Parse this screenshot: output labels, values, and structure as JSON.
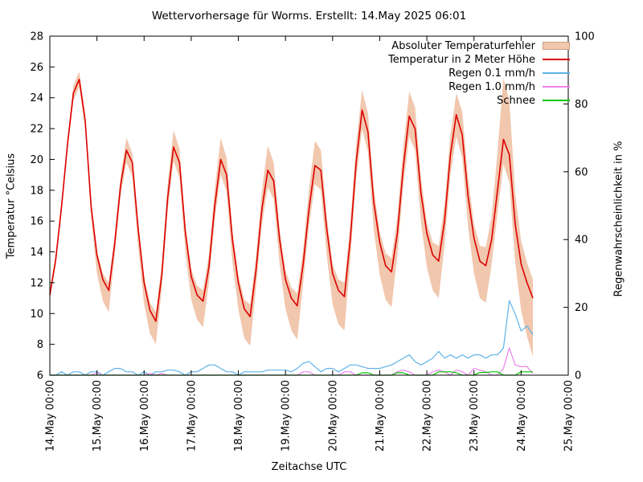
{
  "chart_data": {
    "type": "line",
    "title": "Wettervorhersage für Worms. Erstellt: 14.May 2025 06:01",
    "xlabel": "Zeitachse UTC",
    "ylabel_left": "Temperatur °Celsius",
    "ylabel_right": "Regenwahrscheinlichkeit in %",
    "legend_position": "top-right-inside",
    "grid": false,
    "x_axis": {
      "unit": "hours since 14.May 2025 00:00 UTC",
      "range_hours": [
        0,
        264
      ],
      "tick_hours": [
        0,
        24,
        48,
        72,
        96,
        120,
        144,
        168,
        192,
        216,
        240,
        264
      ],
      "tick_labels": [
        "14.May 00:00",
        "15.May 00:00",
        "16.May 00:00",
        "17.May 00:00",
        "18.May 00:00",
        "19.May 00:00",
        "20.May 00:00",
        "21.May 00:00",
        "22.May 00:00",
        "23.May 00:00",
        "24.May 00:00",
        "25.May 00:00"
      ]
    },
    "y_axis_left": {
      "min": 6,
      "max": 28,
      "ticks": [
        6,
        8,
        10,
        12,
        14,
        16,
        18,
        20,
        22,
        24,
        26,
        28
      ]
    },
    "y_axis_right": {
      "min": 0,
      "max": 100,
      "ticks": [
        0,
        20,
        40,
        60,
        80,
        100
      ]
    },
    "x_hours": [
      0,
      3,
      6,
      9,
      12,
      15,
      18,
      21,
      24,
      27,
      30,
      33,
      36,
      39,
      42,
      45,
      48,
      51,
      54,
      57,
      60,
      63,
      66,
      69,
      72,
      75,
      78,
      81,
      84,
      87,
      90,
      93,
      96,
      99,
      102,
      105,
      108,
      111,
      114,
      117,
      120,
      123,
      126,
      129,
      132,
      135,
      138,
      141,
      144,
      147,
      150,
      153,
      156,
      159,
      162,
      165,
      168,
      171,
      174,
      177,
      180,
      183,
      186,
      189,
      192,
      195,
      198,
      201,
      204,
      207,
      210,
      213,
      216,
      219,
      222,
      225,
      228,
      231,
      234,
      237,
      240,
      243,
      246
    ],
    "series": [
      {
        "name": "Absoluter Temperaturfehler",
        "type": "band",
        "axis": "left",
        "color": "#f1c7ae",
        "swatch_border": "#c8a188",
        "upper": [
          11.5,
          13.8,
          17.4,
          21.4,
          24.8,
          25.7,
          22.9,
          17.3,
          14.1,
          12.6,
          12.0,
          15.0,
          18.9,
          21.4,
          20.4,
          15.9,
          12.4,
          10.7,
          10.1,
          13.2,
          18.4,
          21.9,
          20.7,
          15.8,
          12.9,
          11.8,
          11.5,
          13.8,
          18.1,
          21.4,
          20.1,
          15.4,
          12.5,
          10.9,
          10.6,
          13.7,
          18.0,
          20.9,
          19.8,
          15.5,
          12.8,
          11.7,
          11.3,
          14.2,
          18.1,
          21.2,
          20.6,
          16.3,
          13.2,
          12.2,
          12.0,
          15.8,
          21.0,
          24.5,
          23.0,
          18.1,
          15.3,
          13.9,
          13.6,
          16.3,
          20.8,
          24.4,
          23.4,
          18.8,
          15.9,
          14.6,
          14.4,
          17.1,
          21.6,
          24.3,
          23.1,
          18.8,
          15.8,
          14.4,
          14.3,
          16.3,
          20.5,
          25.3,
          23.8,
          17.8,
          14.7,
          13.3,
          12.2
        ],
        "lower": [
          10.9,
          13.1,
          16.6,
          20.6,
          23.8,
          24.7,
          22.0,
          16.2,
          12.6,
          10.8,
          10.1,
          13.7,
          17.6,
          19.8,
          18.9,
          14.3,
          10.6,
          8.7,
          8.0,
          11.6,
          16.7,
          19.9,
          18.8,
          14.0,
          10.9,
          9.6,
          9.1,
          12.0,
          16.1,
          19.0,
          17.9,
          13.3,
          10.3,
          8.4,
          7.9,
          11.7,
          15.8,
          18.2,
          17.4,
          13.2,
          10.3,
          8.9,
          8.3,
          12.0,
          15.7,
          18.4,
          18.0,
          13.8,
          10.6,
          9.3,
          8.9,
          13.5,
          18.7,
          22.0,
          20.5,
          15.4,
          12.5,
          10.9,
          10.4,
          13.8,
          18.3,
          21.5,
          20.6,
          15.9,
          13.0,
          11.5,
          11.0,
          14.5,
          19.0,
          21.5,
          20.1,
          15.6,
          12.6,
          11.0,
          10.7,
          13.2,
          16.5,
          19.7,
          18.5,
          13.3,
          10.2,
          8.5,
          7.2
        ]
      },
      {
        "name": "Temperatur in 2 Meter Höhe",
        "type": "line",
        "axis": "left",
        "color": "#dc0000",
        "values": [
          11.2,
          13.5,
          17.0,
          21.0,
          24.3,
          25.2,
          22.5,
          17.0,
          13.8,
          12.2,
          11.5,
          14.5,
          18.3,
          20.6,
          19.8,
          15.5,
          12.0,
          10.2,
          9.5,
          12.5,
          17.5,
          20.8,
          19.8,
          15.3,
          12.4,
          11.2,
          10.8,
          13.0,
          17.0,
          20.0,
          19.0,
          14.8,
          12.0,
          10.3,
          9.8,
          12.8,
          16.8,
          19.3,
          18.6,
          14.8,
          12.2,
          11.0,
          10.5,
          13.2,
          16.8,
          19.6,
          19.3,
          15.5,
          12.6,
          11.5,
          11.1,
          14.8,
          19.8,
          23.2,
          21.8,
          17.2,
          14.6,
          13.1,
          12.7,
          15.2,
          19.5,
          22.8,
          22.0,
          17.8,
          15.2,
          13.8,
          13.4,
          16.0,
          20.3,
          22.9,
          21.6,
          17.6,
          14.9,
          13.4,
          13.1,
          14.8,
          18.0,
          21.3,
          20.3,
          15.8,
          13.2,
          12.0,
          11.0
        ]
      },
      {
        "name": "Regen 0.1 mm/h",
        "type": "line",
        "axis": "right",
        "color": "#5fb2e8",
        "values": [
          0,
          0,
          1,
          0,
          1,
          1,
          0,
          1,
          1,
          0,
          1,
          2,
          2,
          1,
          1,
          0,
          1,
          0,
          1,
          1,
          1.5,
          1.5,
          1,
          0,
          1,
          1,
          2,
          3,
          3,
          2,
          1,
          1,
          0,
          1,
          1,
          1,
          1,
          1.5,
          1.5,
          1.5,
          1.5,
          1,
          2,
          3.5,
          4,
          2.5,
          1,
          2,
          2,
          1,
          2,
          3,
          3,
          2.5,
          2,
          2,
          2,
          2.5,
          3,
          4,
          5,
          6,
          4,
          3,
          4,
          5,
          7,
          5,
          6,
          5,
          6,
          5,
          6,
          6,
          5,
          6,
          6,
          8,
          22,
          18,
          13,
          14.5,
          12
        ]
      },
      {
        "name": "Regen 1.0 mm/h",
        "type": "line",
        "axis": "right",
        "color": "#ee82ee",
        "values": [
          0,
          0,
          0,
          0,
          0,
          0,
          0,
          0,
          0.7,
          0,
          0,
          0,
          0,
          0,
          0,
          0,
          0,
          0.5,
          0,
          0.5,
          0,
          0,
          0,
          0,
          0,
          0,
          0,
          0,
          0,
          0,
          0,
          0,
          0,
          0,
          0,
          0,
          0,
          0,
          0,
          0,
          0,
          0,
          0,
          1,
          1,
          0,
          0,
          0,
          0,
          0,
          1,
          1,
          0,
          0,
          0,
          0,
          0,
          0,
          0,
          1,
          1.5,
          1,
          0,
          0,
          0,
          1,
          1.5,
          1,
          0,
          1.5,
          1,
          0,
          2,
          1.5,
          1,
          0,
          0,
          2,
          8,
          3,
          2.5,
          2.5,
          0.5
        ]
      },
      {
        "name": "Schnee",
        "type": "line",
        "axis": "right",
        "color": "#00c400",
        "values": [
          0,
          0,
          0,
          0,
          0,
          0,
          0,
          0,
          0,
          0,
          0,
          0,
          0,
          0,
          0,
          0,
          0,
          0,
          0,
          0,
          0,
          0,
          0,
          0,
          0,
          0,
          0,
          0,
          0,
          0,
          0,
          0,
          0,
          0,
          0,
          0,
          0,
          0,
          0,
          0,
          0,
          0,
          0,
          0,
          0,
          0,
          0,
          0,
          0,
          0,
          0,
          0,
          0,
          0.7,
          0.7,
          0,
          0,
          0,
          0,
          0.7,
          0.7,
          0,
          0,
          0,
          0,
          0,
          1,
          1,
          1,
          0.7,
          0,
          0,
          0,
          0.8,
          0.8,
          1,
          1,
          0,
          0,
          0,
          1,
          1,
          1
        ]
      }
    ]
  }
}
